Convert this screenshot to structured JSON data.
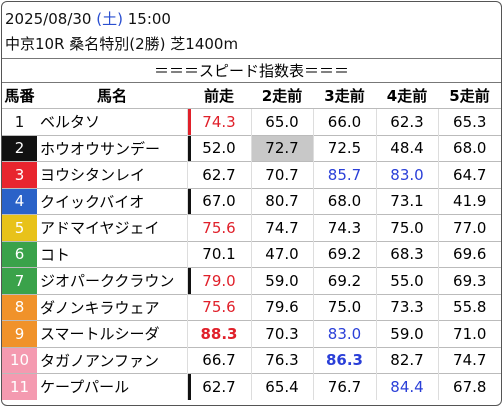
{
  "header": {
    "date": "2025/08/30",
    "weekday": "(土)",
    "time": "15:00",
    "race": "中京10R 桑名特別(2勝) 芝1400m"
  },
  "table": {
    "title": "＝＝＝スピード指数表＝＝＝",
    "columns": [
      "馬番",
      "馬名",
      "前走",
      "2走前",
      "3走前",
      "4走前",
      "5走前"
    ],
    "rows": [
      [
        "1",
        "ベルタソ",
        "74.3",
        "65.0",
        "66.0",
        "62.3",
        "65.3"
      ],
      [
        "2",
        "ホウオウサンデー",
        "52.0",
        "72.7",
        "72.5",
        "48.4",
        "68.0"
      ],
      [
        "3",
        "ヨウシタンレイ",
        "62.7",
        "70.7",
        "85.7",
        "83.0",
        "64.7"
      ],
      [
        "4",
        "クイックバイオ",
        "67.0",
        "80.7",
        "68.0",
        "73.1",
        "41.9"
      ],
      [
        "5",
        "アドマイヤジェイ",
        "75.6",
        "74.7",
        "74.3",
        "75.0",
        "77.0"
      ],
      [
        "6",
        "コト",
        "70.1",
        "47.0",
        "69.2",
        "68.3",
        "69.6"
      ],
      [
        "7",
        "ジオパーククラウン",
        "79.0",
        "59.0",
        "69.2",
        "55.0",
        "69.3"
      ],
      [
        "8",
        "ダノンキラウェア",
        "75.6",
        "79.6",
        "75.0",
        "73.3",
        "55.8"
      ],
      [
        "9",
        "スマートルシーダ",
        "88.3",
        "70.3",
        "83.0",
        "59.0",
        "71.0"
      ],
      [
        "10",
        "タガノアンファン",
        "66.7",
        "76.3",
        "86.3",
        "82.7",
        "74.7"
      ],
      [
        "11",
        "ケープパール",
        "62.7",
        "65.4",
        "76.7",
        "84.4",
        "67.8"
      ]
    ]
  }
}
